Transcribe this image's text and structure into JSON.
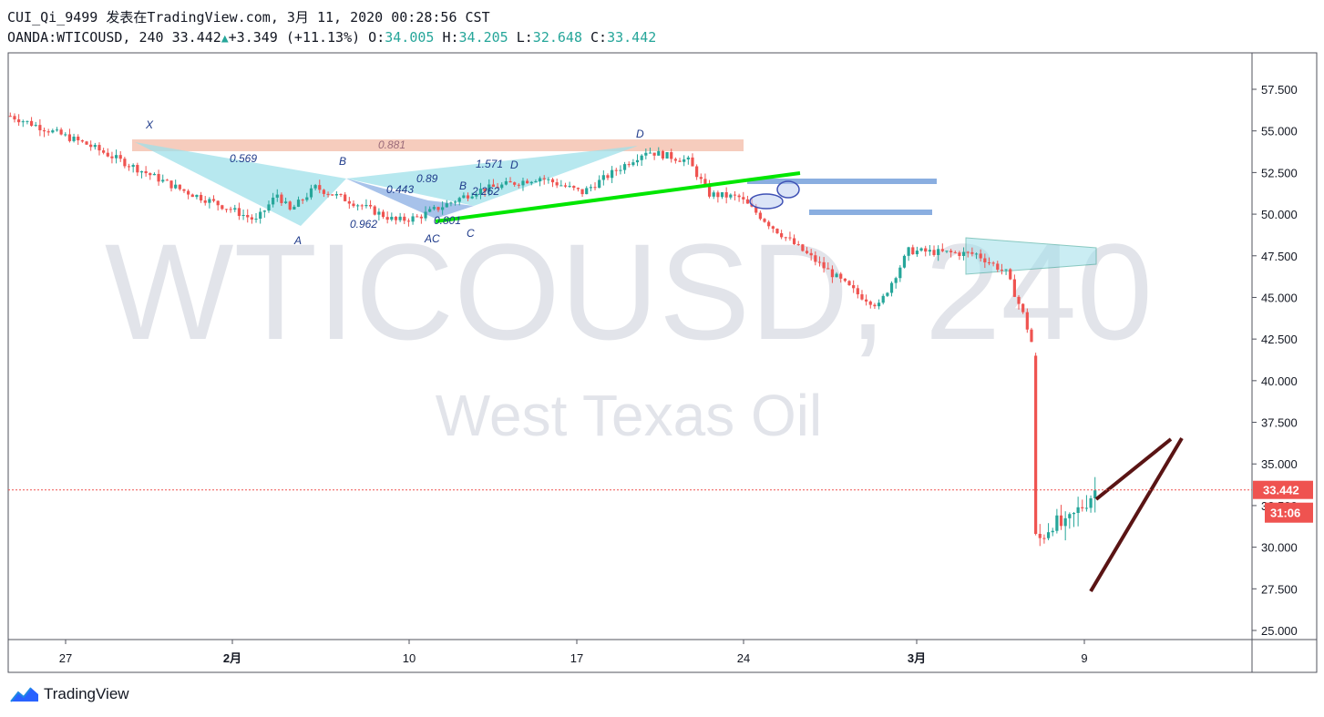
{
  "header": {
    "line1": "CUI_Qi_9499 发表在TradingView.com, 3月 11, 2020 00:28:56 CST",
    "symbol": "OANDA:WTICOUSD, 240",
    "last": "33.442",
    "change": "+3.349 (+11.13%)",
    "open_label": "O:",
    "open": "34.005",
    "high_label": "H:",
    "high": "34.205",
    "low_label": "L:",
    "low": "32.648",
    "close_label": "C:",
    "close": "33.442"
  },
  "watermark": {
    "symbol": "WTICOUSD, 240",
    "subtitle": "West Texas Oil"
  },
  "brand": {
    "name": "TradingView",
    "icon": "tradingview-logo-icon"
  },
  "colors": {
    "up": "#26a69a",
    "down": "#ef5350",
    "price_line": "#ef5350",
    "trendline": "#00e600",
    "wedge": "#5a1414",
    "harmonic": "#9fe0ea",
    "level": "#8aaee0"
  },
  "chart_data": {
    "type": "candlestick",
    "ylim": [
      24,
      58.5
    ],
    "y_ticks": [
      "25.000",
      "27.500",
      "30.000",
      "32.500",
      "35.000",
      "37.500",
      "40.000",
      "42.500",
      "45.000",
      "47.500",
      "50.000",
      "52.500",
      "55.000",
      "57.500"
    ],
    "x_ticks": [
      "27",
      "2月",
      "10",
      "17",
      "24",
      "3月",
      "9"
    ],
    "last_price": 33.442,
    "last_price_label": "33.442",
    "countdown_label": "31:06",
    "pattern_labels": [
      "X",
      "A",
      "B",
      "C",
      "D",
      "AC",
      "0.569",
      "0.962",
      "0.89",
      "0.443",
      "1.571",
      "2.262",
      "0.801",
      "0.881"
    ],
    "anchors": [
      {
        "t": 0,
        "p": 55.9
      },
      {
        "t": 18,
        "p": 54.2
      },
      {
        "t": 40,
        "p": 51.5
      },
      {
        "t": 52,
        "p": 50.3
      },
      {
        "t": 58,
        "p": 49.6
      },
      {
        "t": 63,
        "p": 51.2
      },
      {
        "t": 66,
        "p": 50.2
      },
      {
        "t": 72,
        "p": 51.6
      },
      {
        "t": 82,
        "p": 50.6
      },
      {
        "t": 91,
        "p": 49.6
      },
      {
        "t": 96,
        "p": 49.8
      },
      {
        "t": 110,
        "p": 51.4
      },
      {
        "t": 125,
        "p": 52.2
      },
      {
        "t": 135,
        "p": 51.3
      },
      {
        "t": 150,
        "p": 53.8
      },
      {
        "t": 160,
        "p": 53.2
      },
      {
        "t": 165,
        "p": 51.2
      },
      {
        "t": 172,
        "p": 51.0
      },
      {
        "t": 180,
        "p": 49.2
      },
      {
        "t": 190,
        "p": 47.2
      },
      {
        "t": 200,
        "p": 45.2
      },
      {
        "t": 205,
        "p": 44.5
      },
      {
        "t": 212,
        "p": 47.8
      },
      {
        "t": 228,
        "p": 47.6
      },
      {
        "t": 235,
        "p": 46.5
      },
      {
        "t": 239,
        "p": 44.0
      },
      {
        "t": 242,
        "p": 41.5
      },
      {
        "t": 243,
        "p": 30.5
      },
      {
        "t": 246,
        "p": 31.5
      },
      {
        "t": 249,
        "p": 31.2
      },
      {
        "t": 252,
        "p": 32.2
      },
      {
        "t": 256,
        "p": 33.4
      }
    ]
  }
}
